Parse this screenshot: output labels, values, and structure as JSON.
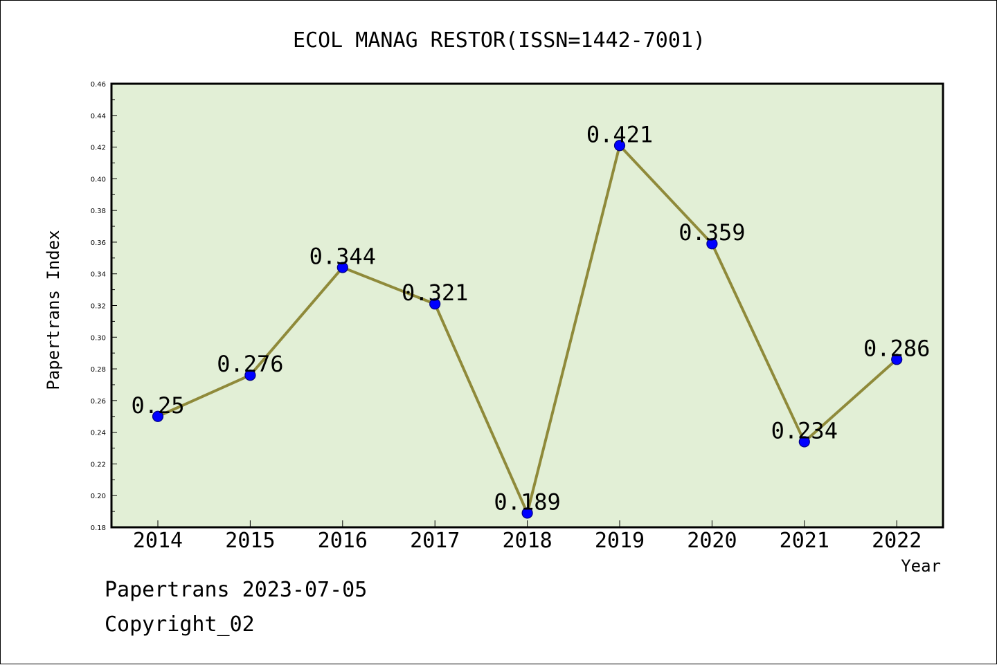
{
  "chart_data": {
    "type": "line",
    "title": "ECOL MANAG RESTOR(ISSN=1442-7001)",
    "xlabel": "Year",
    "ylabel": "Papertrans Index",
    "categories": [
      "2014",
      "2015",
      "2016",
      "2017",
      "2018",
      "2019",
      "2020",
      "2021",
      "2022"
    ],
    "values": [
      0.25,
      0.276,
      0.344,
      0.321,
      0.189,
      0.421,
      0.359,
      0.234,
      0.286
    ],
    "data_labels": [
      "0.25",
      "0.276",
      "0.344",
      "0.321",
      "0.189",
      "0.421",
      "0.359",
      "0.234",
      "0.286"
    ],
    "ylim": [
      0.18,
      0.46
    ],
    "yticks": [
      "0.18",
      "0.20",
      "0.22",
      "0.24",
      "0.26",
      "0.28",
      "0.30",
      "0.32",
      "0.34",
      "0.36",
      "0.38",
      "0.40",
      "0.42",
      "0.44",
      "0.46"
    ],
    "grid": false,
    "legend": "none",
    "colors": {
      "plot_background": "#e2efd6",
      "line": "#8f8a3a",
      "marker": "#0000ff",
      "marker_edge": "#000080"
    }
  },
  "footer": {
    "date_line": "Papertrans 2023-07-05",
    "copyright_line": "Copyright_02"
  }
}
